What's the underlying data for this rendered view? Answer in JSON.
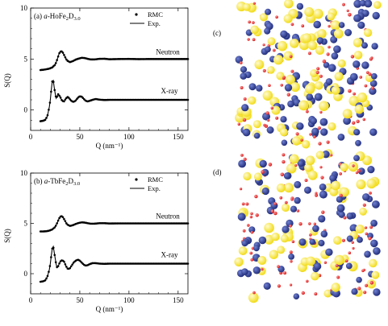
{
  "chart_data": [
    {
      "type": "line",
      "panel_label": "(a)",
      "sample": {
        "prefix": "a-",
        "main": "HoFe",
        "sub1": "2",
        "mid": "D",
        "sub2": "3.0"
      },
      "xlabel": "Q (nm⁻¹)",
      "ylabel": "S(Q)",
      "xlim": [
        0,
        160
      ],
      "ylim": [
        -2,
        10
      ],
      "xticks": [
        "0",
        "50",
        "100",
        "150"
      ],
      "yticks": [
        "0",
        "5",
        "10"
      ],
      "legend": {
        "position": "top-right",
        "rmc": "RMC",
        "exp": "Exp."
      },
      "series": [
        {
          "name": "Neutron",
          "offset": 4,
          "x": [
            10,
            13,
            16,
            19,
            22,
            25,
            27,
            29,
            31,
            33,
            35,
            37,
            40,
            43,
            46,
            49,
            52,
            55,
            58,
            61,
            65,
            70,
            75,
            80,
            90,
            100,
            110,
            120,
            130,
            140,
            150,
            160
          ],
          "y": [
            -0.08,
            -0.05,
            0.0,
            0.06,
            0.18,
            0.45,
            0.95,
            1.55,
            1.8,
            1.6,
            1.2,
            0.85,
            0.7,
            0.8,
            0.95,
            1.05,
            1.12,
            1.1,
            1.02,
            0.96,
            0.96,
            1.02,
            1.03,
            0.98,
            1.0,
            1.01,
            0.99,
            1.0,
            1.0,
            1.0,
            1.0,
            1.0
          ]
        },
        {
          "name": "X-ray",
          "offset": 0,
          "x": [
            10,
            13,
            15,
            17,
            19,
            20,
            21,
            22,
            23,
            24,
            25,
            26,
            27,
            28,
            30,
            32,
            34,
            36,
            38,
            40,
            42,
            44,
            46,
            48,
            50,
            52,
            54,
            56,
            58,
            60,
            63,
            66,
            70,
            75,
            80,
            90,
            100,
            110,
            120,
            130,
            140,
            150,
            160
          ],
          "y": [
            -1.1,
            -1.05,
            -0.95,
            -0.6,
            0.3,
            1.0,
            2.0,
            2.8,
            2.9,
            2.2,
            1.6,
            1.15,
            1.35,
            1.55,
            1.3,
            0.9,
            0.85,
            1.15,
            1.3,
            1.05,
            0.85,
            0.8,
            0.95,
            1.2,
            1.35,
            1.3,
            1.1,
            0.9,
            0.85,
            0.9,
            1.0,
            1.08,
            1.02,
            0.98,
            1.0,
            1.0,
            1.0,
            1.0,
            1.0,
            1.0,
            1.0,
            1.0,
            1.0
          ]
        }
      ]
    },
    {
      "type": "line",
      "panel_label": "(b)",
      "sample": {
        "prefix": "a-",
        "main": "TbFe",
        "sub1": "2",
        "mid": "D",
        "sub2": "3.0"
      },
      "xlabel": "Q (nm⁻¹)",
      "ylabel": "S(Q)",
      "xlim": [
        0,
        160
      ],
      "ylim": [
        -2,
        10
      ],
      "xticks": [
        "0",
        "50",
        "100",
        "150"
      ],
      "yticks": [
        "0",
        "5",
        "10"
      ],
      "legend": {
        "position": "top-right",
        "rmc": "RMC",
        "exp": "Exp."
      },
      "series": [
        {
          "name": "Neutron",
          "offset": 4,
          "x": [
            10,
            13,
            16,
            19,
            22,
            25,
            27,
            29,
            31,
            33,
            35,
            37,
            40,
            43,
            46,
            49,
            52,
            55,
            58,
            61,
            65,
            70,
            75,
            80,
            90,
            100,
            110,
            120,
            130,
            140,
            150,
            160
          ],
          "y": [
            0.2,
            0.2,
            0.22,
            0.28,
            0.4,
            0.65,
            1.05,
            1.5,
            1.75,
            1.6,
            1.25,
            0.9,
            0.75,
            0.82,
            0.95,
            1.05,
            1.1,
            1.08,
            1.02,
            0.97,
            0.97,
            1.02,
            1.02,
            0.99,
            1.0,
            1.0,
            1.0,
            1.0,
            1.0,
            1.0,
            1.0,
            1.0
          ]
        },
        {
          "name": "X-ray",
          "offset": 0,
          "x": [
            10,
            13,
            15,
            17,
            19,
            20,
            21,
            22,
            23,
            24,
            25,
            26,
            27,
            28,
            30,
            32,
            34,
            36,
            38,
            40,
            42,
            44,
            46,
            48,
            50,
            52,
            54,
            56,
            58,
            60,
            63,
            66,
            70,
            75,
            80,
            90,
            100,
            110,
            120,
            130,
            140,
            150,
            160
          ],
          "y": [
            -0.8,
            -0.75,
            -0.65,
            -0.3,
            0.4,
            1.0,
            1.8,
            2.5,
            2.7,
            2.1,
            1.5,
            0.9,
            0.6,
            0.75,
            1.2,
            1.35,
            1.2,
            0.75,
            0.45,
            0.55,
            0.85,
            1.15,
            1.3,
            1.4,
            1.3,
            1.1,
            0.9,
            0.8,
            0.85,
            0.95,
            1.05,
            1.05,
            1.0,
            0.98,
            1.0,
            1.0,
            1.0,
            1.0,
            1.0,
            1.0,
            1.0,
            1.0,
            1.0
          ]
        }
      ]
    }
  ],
  "structure_panels": [
    {
      "label": "(c)",
      "colors": {
        "yellow": "#f2dc1b",
        "blue": "#232f7c",
        "red": "#d81818"
      }
    },
    {
      "label": "(d)",
      "colors": {
        "yellow": "#f2dc1b",
        "blue": "#232f7c",
        "red": "#d81818"
      }
    }
  ]
}
